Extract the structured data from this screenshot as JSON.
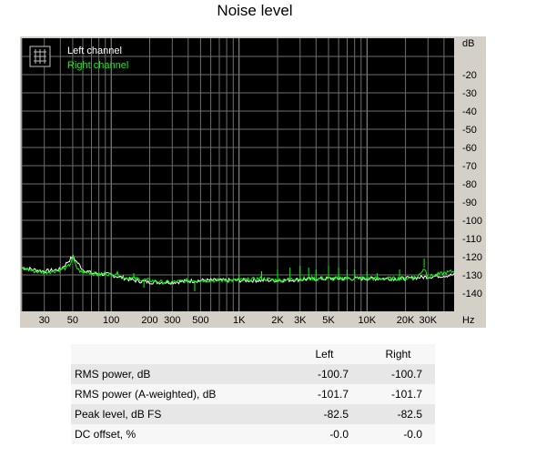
{
  "chart_data": {
    "type": "line",
    "title": "Noise level",
    "x_scale": "log",
    "xlim": [
      20,
      48000
    ],
    "ylim": [
      -150,
      0
    ],
    "x_unit": "Hz",
    "y_unit": "dB",
    "x_ticks": [
      {
        "value": 30,
        "label": "30"
      },
      {
        "value": 50,
        "label": "50"
      },
      {
        "value": 100,
        "label": "100"
      },
      {
        "value": 200,
        "label": "200"
      },
      {
        "value": 300,
        "label": "300"
      },
      {
        "value": 500,
        "label": "500"
      },
      {
        "value": 1000,
        "label": "1K"
      },
      {
        "value": 2000,
        "label": "2K"
      },
      {
        "value": 3000,
        "label": "3K"
      },
      {
        "value": 5000,
        "label": "5K"
      },
      {
        "value": 10000,
        "label": "10K"
      },
      {
        "value": 20000,
        "label": "20K"
      },
      {
        "value": 30000,
        "label": "30K"
      }
    ],
    "y_ticks": [
      {
        "value": -20,
        "label": "-20"
      },
      {
        "value": -30,
        "label": "-30"
      },
      {
        "value": -40,
        "label": "-40"
      },
      {
        "value": -50,
        "label": "-50"
      },
      {
        "value": -60,
        "label": "-60"
      },
      {
        "value": -70,
        "label": "-70"
      },
      {
        "value": -80,
        "label": "-80"
      },
      {
        "value": -90,
        "label": "-90"
      },
      {
        "value": -100,
        "label": "-100"
      },
      {
        "value": -110,
        "label": "-110"
      },
      {
        "value": -120,
        "label": "-120"
      },
      {
        "value": -130,
        "label": "-130"
      },
      {
        "value": -140,
        "label": "-140"
      }
    ],
    "grid": true,
    "legend": "top-left",
    "series": [
      {
        "name": "Left channel",
        "color": "#ffffff",
        "x": [
          20,
          30,
          40,
          50,
          60,
          70,
          100,
          150,
          200,
          300,
          500,
          1000,
          2000,
          5000,
          10000,
          20000,
          30000,
          48000
        ],
        "y": [
          -126,
          -128,
          -127,
          -120,
          -127,
          -129,
          -130,
          -133,
          -134,
          -134,
          -133,
          -133,
          -133,
          -132,
          -132,
          -132,
          -131,
          -130
        ]
      },
      {
        "name": "Right channel",
        "color": "#00ff00",
        "x": [
          20,
          25,
          30,
          35,
          40,
          45,
          48,
          50,
          52,
          55,
          60,
          65,
          70,
          80,
          90,
          100,
          110,
          120,
          150,
          200,
          250,
          300,
          400,
          500,
          700,
          1000,
          1500,
          2000,
          3000,
          5000,
          7000,
          10000,
          15000,
          20000,
          25000,
          28000,
          30000,
          35000,
          40000,
          48000
        ],
        "y": [
          -126,
          -128,
          -128.5,
          -128,
          -127,
          -126,
          -124,
          -120,
          -124,
          -127,
          -129,
          -128,
          -129,
          -130,
          -129,
          -130,
          -129,
          -131,
          -132,
          -133,
          -134,
          -134,
          -133,
          -133,
          -133,
          -133,
          -132,
          -133,
          -132,
          -132,
          -132,
          -132,
          -132,
          -132,
          -131,
          -126,
          -131,
          -130,
          -129,
          -128
        ]
      }
    ],
    "spikes": [
      {
        "x": 60,
        "y": -127
      },
      {
        "x": 150,
        "y": -129
      },
      {
        "x": 180,
        "y": -137
      },
      {
        "x": 450,
        "y": -139
      },
      {
        "x": 1000,
        "y": -130
      },
      {
        "x": 1500,
        "y": -128
      },
      {
        "x": 2000,
        "y": -127
      },
      {
        "x": 2500,
        "y": -126
      },
      {
        "x": 3000,
        "y": -125
      },
      {
        "x": 3500,
        "y": -126
      },
      {
        "x": 4000,
        "y": -127
      },
      {
        "x": 5000,
        "y": -125
      },
      {
        "x": 6000,
        "y": -126
      },
      {
        "x": 7000,
        "y": -127
      },
      {
        "x": 8000,
        "y": -127
      },
      {
        "x": 10000,
        "y": -128
      },
      {
        "x": 12000,
        "y": -129
      },
      {
        "x": 18000,
        "y": -127
      },
      {
        "x": 28000,
        "y": -121
      }
    ]
  },
  "table": {
    "headers": [
      "",
      "Left",
      "Right"
    ],
    "rows": [
      {
        "label": "RMS power, dB",
        "left": "-100.7",
        "right": "-100.7"
      },
      {
        "label": "RMS power (A-weighted), dB",
        "left": "-101.7",
        "right": "-101.7"
      },
      {
        "label": "Peak level, dB FS",
        "left": "-82.5",
        "right": "-82.5"
      },
      {
        "label": "DC offset, %",
        "left": "-0.0",
        "right": "-0.0"
      }
    ]
  }
}
